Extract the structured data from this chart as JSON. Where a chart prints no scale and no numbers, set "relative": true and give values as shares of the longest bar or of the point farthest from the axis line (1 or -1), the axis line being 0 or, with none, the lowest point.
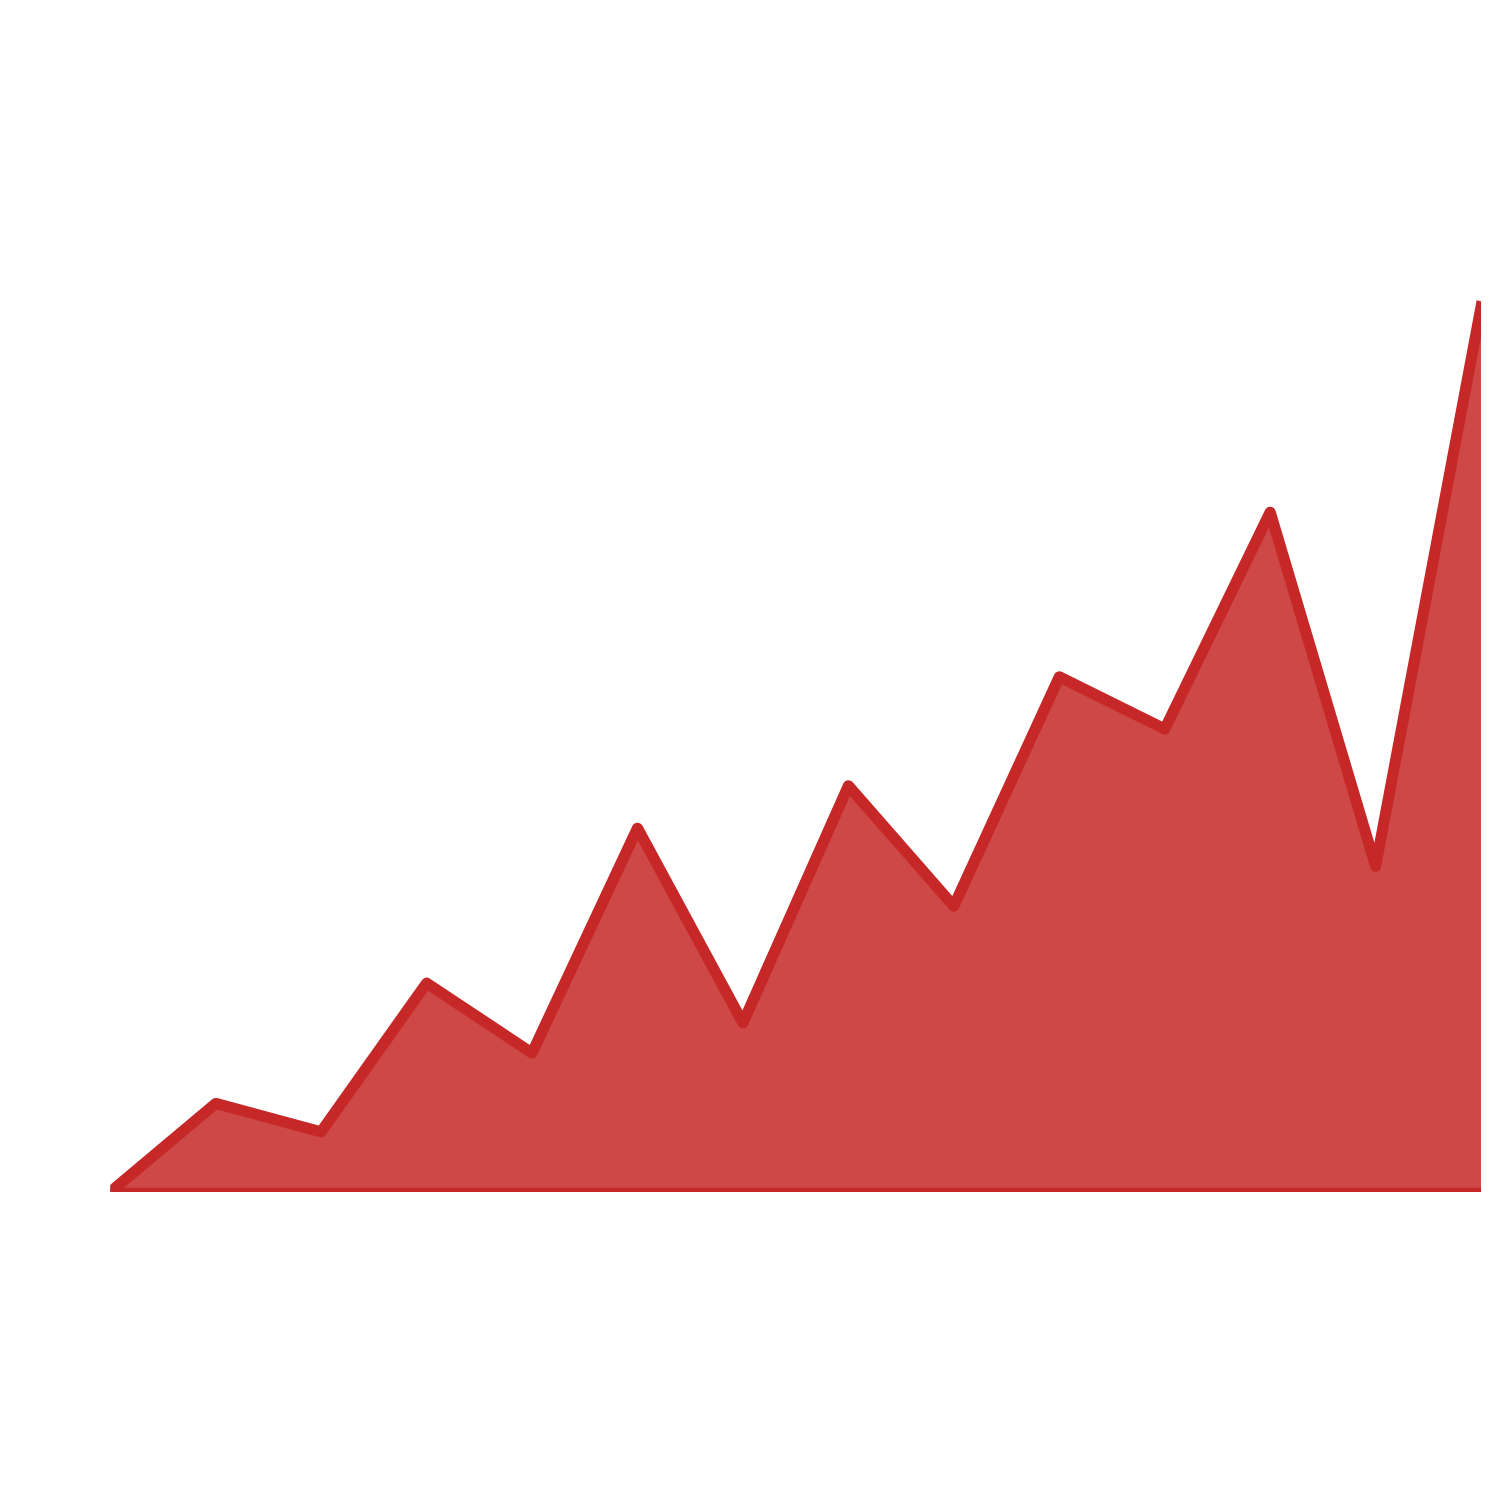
{
  "chart_data": {
    "type": "area",
    "relative": true,
    "categories": [
      null,
      null,
      null,
      null,
      null,
      null,
      null,
      null,
      null,
      null,
      null,
      null,
      null,
      null
    ],
    "series": [
      {
        "color": "#c62828",
        "values": [
          0,
          0.1,
          0.068,
          0.236,
          0.157,
          0.411,
          0.191,
          0.459,
          0.323,
          0.582,
          0.523,
          0.768,
          0.368,
          1.0
        ]
      }
    ]
  }
}
